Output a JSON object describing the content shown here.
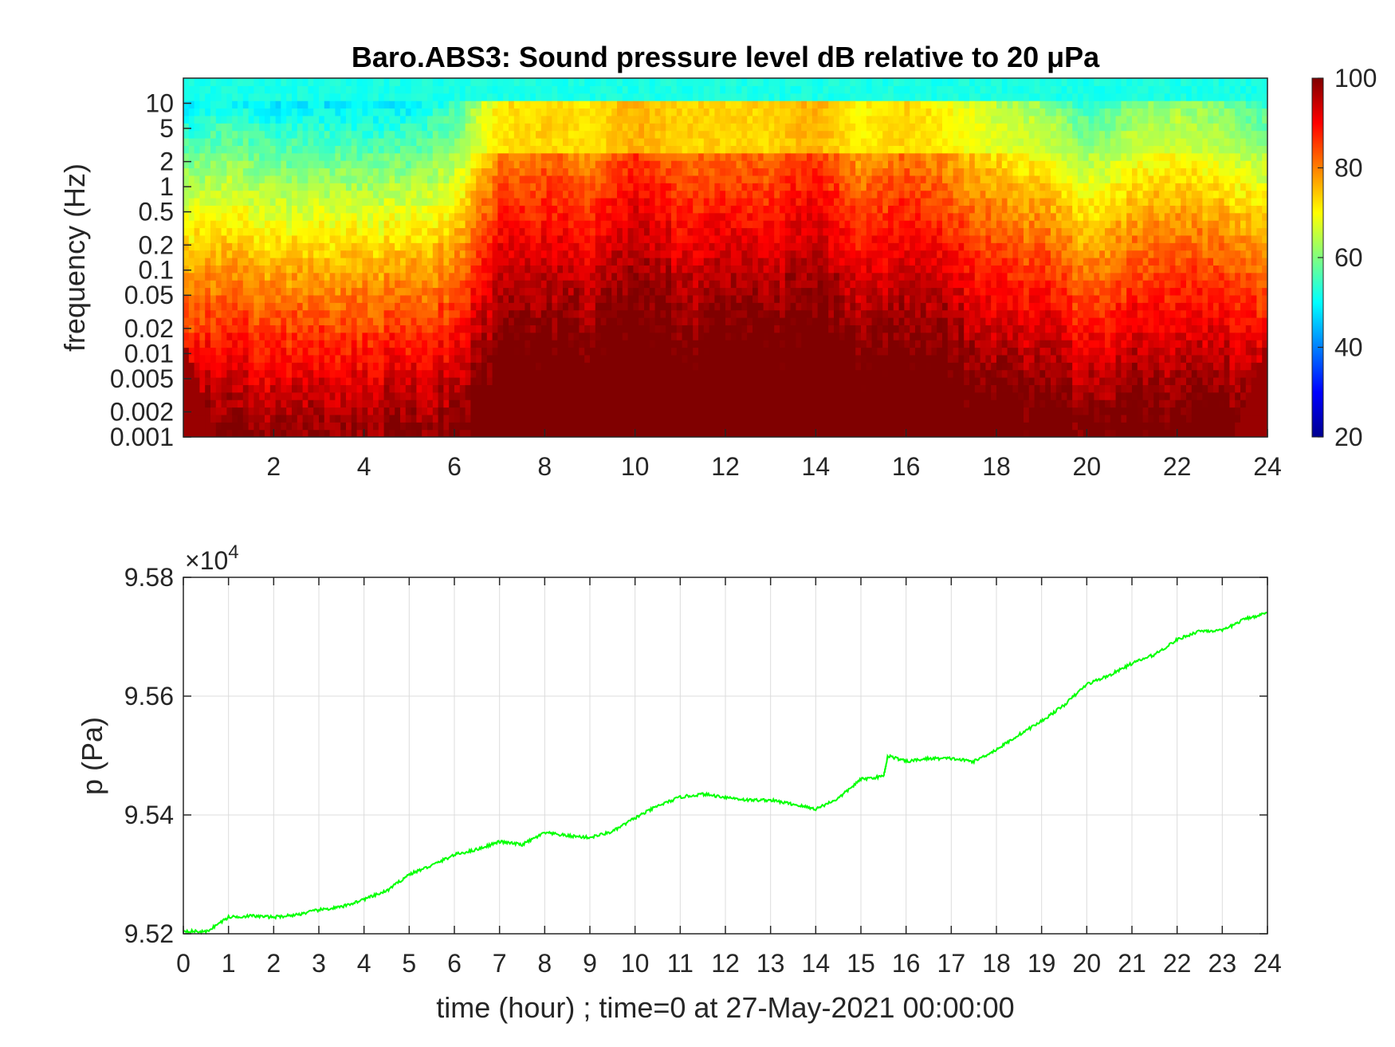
{
  "chart_data": [
    {
      "type": "heatmap",
      "title": "Baro.ABS3: Sound pressure level dB relative to 20 μPa",
      "ylabel": "frequency (Hz)",
      "xlabel": "",
      "x_tick_labels": [
        "2",
        "4",
        "6",
        "8",
        "10",
        "12",
        "14",
        "16",
        "18",
        "20",
        "22",
        "24"
      ],
      "x_ticks": [
        2,
        4,
        6,
        8,
        10,
        12,
        14,
        16,
        18,
        20,
        22,
        24
      ],
      "xlim": [
        0,
        24
      ],
      "y_scale": "log",
      "y_tick_labels": [
        "10",
        "5",
        "2",
        "1",
        "0.5",
        "0.2",
        "0.1",
        "0.05",
        "0.02",
        "0.01",
        "0.005",
        "0.002",
        "0.001"
      ],
      "y_ticks": [
        10,
        5,
        2,
        1,
        0.5,
        0.2,
        0.1,
        0.05,
        0.02,
        0.01,
        0.005,
        0.002,
        0.001
      ],
      "ylim": [
        0.001,
        20
      ],
      "colormap": "jet",
      "colorbar": {
        "range": [
          20,
          100
        ],
        "tick_labels": [
          "100",
          "80",
          "60",
          "40",
          "20"
        ],
        "ticks": [
          100,
          80,
          60,
          40,
          20
        ]
      },
      "spl_profile": {
        "description_hours": [
          0,
          1,
          2,
          3,
          4,
          5,
          6,
          7,
          8,
          9,
          10,
          11,
          12,
          13,
          14,
          15,
          16,
          17,
          18,
          19,
          20,
          21,
          22,
          23,
          24
        ],
        "activity": [
          0.35,
          0.4,
          0.35,
          0.35,
          0.35,
          0.35,
          0.45,
          0.8,
          0.85,
          0.8,
          0.95,
          0.85,
          0.85,
          0.85,
          0.95,
          0.75,
          0.85,
          0.75,
          0.65,
          0.6,
          0.45,
          0.55,
          0.6,
          0.55,
          0.45
        ]
      },
      "grid": false
    },
    {
      "type": "line",
      "title": "",
      "xlabel": "time (hour) ; time=0 at 27-May-2021 00:00:00",
      "ylabel": "p (Pa)",
      "y_exponent_label": "×10",
      "y_exponent_power": "4",
      "x_tick_labels": [
        "0",
        "1",
        "2",
        "3",
        "4",
        "5",
        "6",
        "7",
        "8",
        "9",
        "10",
        "11",
        "12",
        "13",
        "14",
        "15",
        "16",
        "17",
        "18",
        "19",
        "20",
        "21",
        "22",
        "23",
        "24"
      ],
      "xlim": [
        0,
        24
      ],
      "y_tick_labels": [
        "9.58",
        "9.56",
        "9.54",
        "9.52"
      ],
      "y_ticks": [
        95800,
        95600,
        95400,
        95200
      ],
      "ylim": [
        95200,
        95800
      ],
      "grid": true,
      "line_color": "#00ff00",
      "series": [
        {
          "x": [
            0,
            0.5,
            1,
            1.5,
            2,
            2.5,
            3,
            3.5,
            4,
            4.5,
            5,
            5.5,
            6,
            6.5,
            7,
            7.5,
            8,
            8.5,
            9,
            9.5,
            10,
            10.5,
            11,
            11.5,
            12,
            12.5,
            13,
            13.5,
            14,
            14.5,
            15,
            15.5,
            15.6,
            16,
            16.5,
            17,
            17.5,
            18,
            18.5,
            19,
            19.5,
            20,
            20.5,
            21,
            21.5,
            22,
            22.5,
            23,
            23.5,
            24
          ],
          "y": [
            95205,
            95203,
            95228,
            95230,
            95228,
            95232,
            95240,
            95245,
            95258,
            95272,
            95300,
            95315,
            95333,
            95342,
            95355,
            95350,
            95370,
            95365,
            95362,
            95372,
            95395,
            95415,
            95430,
            95435,
            95430,
            95425,
            95425,
            95418,
            95410,
            95428,
            95460,
            95465,
            95500,
            95490,
            95495,
            95495,
            95490,
            95510,
            95535,
            95558,
            95585,
            95620,
            95635,
            95655,
            95670,
            95695,
            95710,
            95710,
            95730,
            95740
          ]
        }
      ]
    }
  ]
}
